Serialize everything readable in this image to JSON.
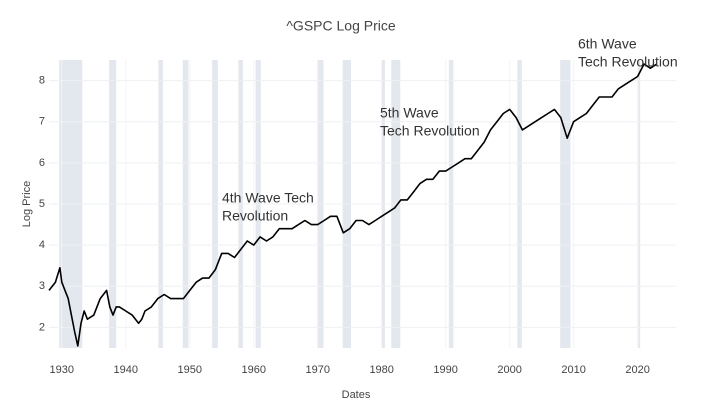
{
  "chart_data": {
    "type": "line",
    "title": "^GSPC Log Price",
    "x_label": "Dates",
    "y_label": "Log Price",
    "x": [
      1928,
      1929,
      1929.7,
      1930,
      1930.5,
      1931,
      1931.5,
      1932,
      1932.5,
      1933,
      1933.5,
      1934,
      1935,
      1936,
      1937,
      1937.5,
      1938,
      1938.5,
      1939,
      1940,
      1941,
      1942,
      1942.5,
      1943,
      1944,
      1945,
      1946,
      1947,
      1948,
      1949,
      1950,
      1951,
      1952,
      1953,
      1954,
      1955,
      1956,
      1957,
      1958,
      1959,
      1960,
      1961,
      1962,
      1963,
      1964,
      1965,
      1966,
      1967,
      1968,
      1969,
      1970,
      1971,
      1972,
      1973,
      1974,
      1975,
      1976,
      1977,
      1978,
      1979,
      1980,
      1981,
      1982,
      1983,
      1984,
      1985,
      1986,
      1987,
      1988,
      1989,
      1990,
      1991,
      1992,
      1993,
      1994,
      1995,
      1996,
      1997,
      1998,
      1999,
      2000,
      2001,
      2002,
      2003,
      2004,
      2005,
      2006,
      2007,
      2008,
      2009,
      2010,
      2011,
      2012,
      2013,
      2014,
      2015,
      2016,
      2017,
      2018,
      2019,
      2020,
      2021,
      2022,
      2023
    ],
    "series": [
      {
        "name": "^GSPC",
        "color": "#000000",
        "values": [
          2.9,
          3.1,
          3.45,
          3.1,
          2.9,
          2.7,
          2.3,
          1.9,
          1.55,
          2.1,
          2.4,
          2.2,
          2.3,
          2.7,
          2.9,
          2.5,
          2.3,
          2.5,
          2.5,
          2.4,
          2.3,
          2.1,
          2.2,
          2.4,
          2.5,
          2.7,
          2.8,
          2.7,
          2.7,
          2.7,
          2.9,
          3.1,
          3.2,
          3.2,
          3.4,
          3.8,
          3.8,
          3.7,
          3.9,
          4.1,
          4.0,
          4.2,
          4.1,
          4.2,
          4.4,
          4.4,
          4.4,
          4.5,
          4.6,
          4.5,
          4.5,
          4.6,
          4.7,
          4.7,
          4.3,
          4.4,
          4.6,
          4.6,
          4.5,
          4.6,
          4.7,
          4.8,
          4.9,
          5.1,
          5.1,
          5.3,
          5.5,
          5.6,
          5.6,
          5.8,
          5.8,
          5.9,
          6.0,
          6.1,
          6.1,
          6.3,
          6.5,
          6.8,
          7.0,
          7.2,
          7.3,
          7.1,
          6.8,
          6.9,
          7.0,
          7.1,
          7.2,
          7.3,
          7.1,
          6.6,
          7.0,
          7.1,
          7.2,
          7.4,
          7.6,
          7.6,
          7.6,
          7.8,
          7.9,
          8.0,
          8.1,
          8.4,
          8.3,
          8.4
        ]
      }
    ],
    "shaded_periods": [
      [
        1929.6,
        1933.2
      ],
      [
        1937.4,
        1938.5
      ],
      [
        1945.1,
        1945.8
      ],
      [
        1948.9,
        1949.8
      ],
      [
        1953.5,
        1954.4
      ],
      [
        1957.6,
        1958.3
      ],
      [
        1960.3,
        1961.1
      ],
      [
        1969.9,
        1970.9
      ],
      [
        1973.9,
        1975.2
      ],
      [
        1980.0,
        1980.5
      ],
      [
        1981.5,
        1982.9
      ],
      [
        1990.5,
        1991.2
      ],
      [
        2001.2,
        2001.9
      ],
      [
        2007.9,
        2009.5
      ],
      [
        2020.1,
        2020.4
      ]
    ],
    "annotations": [
      {
        "lines": [
          "4th Wave Tech",
          "Revolution"
        ]
      },
      {
        "lines": [
          "5th Wave",
          "Tech Revolution"
        ]
      },
      {
        "lines": [
          "6th Wave",
          "Tech Revolution"
        ]
      }
    ],
    "xlim": [
      1928,
      2026
    ],
    "ylim": [
      1.5,
      8.5
    ],
    "xticks": [
      1930,
      1940,
      1950,
      1960,
      1970,
      1980,
      1990,
      2000,
      2010,
      2020
    ],
    "yticks": [
      2,
      3,
      4,
      5,
      6,
      7,
      8
    ],
    "grid": true,
    "shade_color": "#e3e7ee"
  }
}
